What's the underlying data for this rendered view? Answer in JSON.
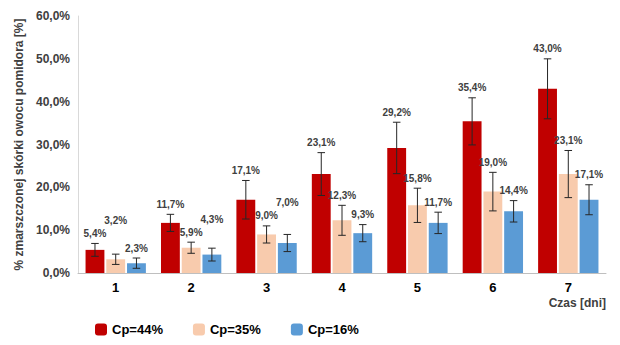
{
  "chart_data": {
    "type": "bar",
    "y_label": "% zmarszczonej skórki owocu pomidora [%]",
    "x_label": "Czas [dni]",
    "categories": [
      "1",
      "2",
      "3",
      "4",
      "5",
      "6",
      "7"
    ],
    "series": [
      {
        "name": "Cp=44%",
        "color": "#c00000",
        "values": [
          5.4,
          11.7,
          17.1,
          23.1,
          29.2,
          35.4,
          43.0
        ],
        "value_labels": [
          "5,4%",
          "11,7%",
          "17,1%",
          "23,1%",
          "29,2%",
          "35,4%",
          "43,0%"
        ],
        "errors": [
          1.5,
          2.0,
          4.5,
          5.0,
          6.0,
          5.5,
          7.0
        ]
      },
      {
        "name": "Cp=35%",
        "color": "#f8cbad",
        "values": [
          3.2,
          5.9,
          9.0,
          12.3,
          15.8,
          19.0,
          23.1
        ],
        "value_labels": [
          "3,2%",
          "5,9%",
          "9,0%",
          "12,3%",
          "15,8%",
          "19,0%",
          "23,1%"
        ],
        "errors": [
          1.2,
          1.3,
          2.0,
          3.5,
          4.0,
          4.5,
          5.5
        ]
      },
      {
        "name": "Cp=16%",
        "color": "#5b9bd5",
        "values": [
          2.3,
          4.3,
          7.0,
          9.3,
          11.7,
          14.4,
          17.1
        ],
        "value_labels": [
          "2,3%",
          "4,3%",
          "7,0%",
          "9,3%",
          "11,7%",
          "14,4%",
          "17,1%"
        ],
        "errors": [
          1.2,
          1.5,
          2.0,
          2.0,
          2.5,
          2.5,
          3.5
        ]
      }
    ],
    "ylim": [
      0,
      60
    ],
    "yticks": [
      {
        "value": 0,
        "label": "0,0%"
      },
      {
        "value": 10,
        "label": "10,0%"
      },
      {
        "value": 20,
        "label": "20,0%"
      },
      {
        "value": 30,
        "label": "30,0%"
      },
      {
        "value": 40,
        "label": "40,0%"
      },
      {
        "value": 50,
        "label": "50,0%"
      },
      {
        "value": 60,
        "label": "60,0%"
      }
    ],
    "grid": false,
    "legend": "bottom",
    "data_labels": true
  }
}
